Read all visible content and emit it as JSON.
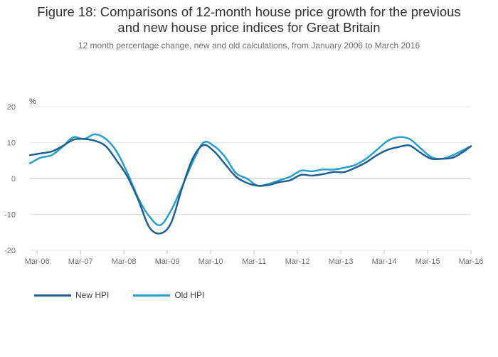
{
  "title_line1": "Figure 18: Comparisons of 12-month house price growth for the previous",
  "title_line2": "and new house price indices for Great Britain",
  "subtitle": "12 month percentage change, new and old calculations, from January 2006 to March 2016",
  "chart_data": {
    "type": "line",
    "ylabel": "%",
    "ylim": [
      -20,
      20
    ],
    "yticks": [
      20,
      10,
      0,
      -10,
      -20
    ],
    "xlim": [
      "2006-01",
      "2016-03"
    ],
    "xtick_labels": [
      "Mar-06",
      "Mar-07",
      "Mar-08",
      "Mar-09",
      "Mar-10",
      "Mar-11",
      "Mar-12",
      "Mar-13",
      "Mar-14",
      "Mar-15",
      "Mar-16"
    ],
    "xtick_dates": [
      "2006-03",
      "2007-03",
      "2008-03",
      "2009-03",
      "2010-03",
      "2011-03",
      "2012-03",
      "2013-03",
      "2014-03",
      "2015-03",
      "2016-03"
    ],
    "grid": true,
    "legend_position": "bottom-left",
    "series": [
      {
        "name": "New HPI",
        "color": "#206095",
        "x": [
          "2006-01",
          "2006-04",
          "2006-07",
          "2006-10",
          "2007-01",
          "2007-04",
          "2007-07",
          "2007-10",
          "2008-01",
          "2008-04",
          "2008-07",
          "2008-10",
          "2009-01",
          "2009-04",
          "2009-07",
          "2009-10",
          "2010-01",
          "2010-04",
          "2010-07",
          "2010-10",
          "2011-01",
          "2011-04",
          "2011-07",
          "2011-10",
          "2012-01",
          "2012-04",
          "2012-07",
          "2012-10",
          "2013-01",
          "2013-04",
          "2013-07",
          "2013-10",
          "2014-01",
          "2014-04",
          "2014-07",
          "2014-10",
          "2015-01",
          "2015-04",
          "2015-07",
          "2015-10",
          "2016-01",
          "2016-03"
        ],
        "values": [
          6.5,
          7.0,
          7.5,
          9.0,
          10.8,
          11.0,
          10.5,
          9.0,
          5.0,
          0.5,
          -6.0,
          -13.5,
          -15.3,
          -12.5,
          -3.0,
          5.5,
          9.3,
          7.5,
          4.0,
          0.5,
          -1.2,
          -2.0,
          -1.8,
          -1.0,
          -0.5,
          1.0,
          0.8,
          1.2,
          1.8,
          1.8,
          3.0,
          4.5,
          6.5,
          8.0,
          8.8,
          9.2,
          7.2,
          5.5,
          5.5,
          5.8,
          7.5,
          9.0
        ]
      },
      {
        "name": "Old HPI",
        "color": "#27a0cc",
        "x": [
          "2006-01",
          "2006-04",
          "2006-07",
          "2006-10",
          "2007-01",
          "2007-04",
          "2007-07",
          "2007-10",
          "2008-01",
          "2008-04",
          "2008-07",
          "2008-10",
          "2009-01",
          "2009-04",
          "2009-07",
          "2009-10",
          "2010-01",
          "2010-04",
          "2010-07",
          "2010-10",
          "2011-01",
          "2011-04",
          "2011-07",
          "2011-10",
          "2012-01",
          "2012-04",
          "2012-07",
          "2012-10",
          "2013-01",
          "2013-04",
          "2013-07",
          "2013-10",
          "2014-01",
          "2014-04",
          "2014-07",
          "2014-10",
          "2015-01",
          "2015-04",
          "2015-07",
          "2015-10",
          "2016-01",
          "2016-03"
        ],
        "values": [
          4.2,
          5.8,
          6.5,
          8.8,
          11.5,
          11.0,
          12.3,
          11.0,
          7.5,
          1.5,
          -5.5,
          -10.5,
          -13.0,
          -9.0,
          -2.5,
          4.5,
          10.0,
          9.0,
          6.0,
          1.5,
          0.0,
          -2.0,
          -1.5,
          -0.5,
          0.5,
          2.2,
          2.0,
          2.5,
          2.5,
          3.0,
          3.8,
          5.5,
          8.0,
          10.5,
          11.5,
          11.0,
          8.5,
          6.0,
          5.5,
          6.5,
          8.0,
          9.0
        ]
      }
    ]
  }
}
